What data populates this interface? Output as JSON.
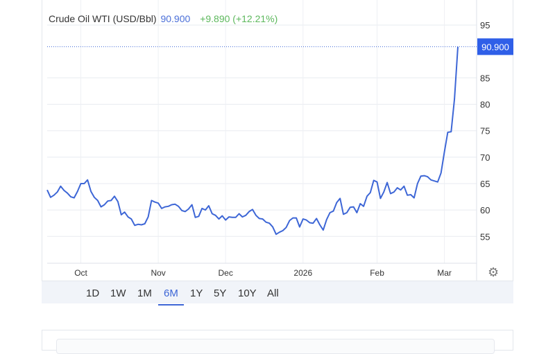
{
  "header": {
    "title": "Crude Oil WTI (USD/Bbl)",
    "price": "90.900",
    "change": "+9.890 (+12.21%)"
  },
  "ranges": [
    {
      "label": "1D"
    },
    {
      "label": "1W"
    },
    {
      "label": "1M"
    },
    {
      "label": "6M",
      "active": true
    },
    {
      "label": "1Y"
    },
    {
      "label": "5Y"
    },
    {
      "label": "10Y"
    },
    {
      "label": "All"
    }
  ],
  "settings_icon": "gear-icon",
  "colors": {
    "line": "#3d66d6",
    "last_price_bg": "#2f5fe8",
    "change": "#5cb85c",
    "price": "#4a6fd8"
  },
  "chart_data": {
    "type": "line",
    "title": "Crude Oil WTI (USD/Bbl)",
    "grid": true,
    "y_axis_side": "right",
    "ylim": [
      50,
      98
    ],
    "y_ticks": [
      55,
      60,
      65,
      70,
      75,
      80,
      85,
      95
    ],
    "last_value_label": "90.900",
    "x_ticks": [
      {
        "label": "Oct",
        "date": "2025-10-01"
      },
      {
        "label": "Nov",
        "date": "2025-11-03"
      },
      {
        "label": "Dec",
        "date": "2025-12-01"
      },
      {
        "label": "2026",
        "date": "2026-01-01"
      },
      {
        "label": "Feb",
        "date": "2026-02-02"
      },
      {
        "label": "Mar",
        "date": "2026-03-02"
      }
    ],
    "x": [
      "2025-09-17",
      "2025-09-18",
      "2025-09-19",
      "2025-09-22",
      "2025-09-23",
      "2025-09-24",
      "2025-09-25",
      "2025-09-26",
      "2025-09-29",
      "2025-09-30",
      "2025-10-01",
      "2025-10-02",
      "2025-10-03",
      "2025-10-06",
      "2025-10-07",
      "2025-10-08",
      "2025-10-09",
      "2025-10-10",
      "2025-10-13",
      "2025-10-14",
      "2025-10-15",
      "2025-10-16",
      "2025-10-17",
      "2025-10-20",
      "2025-10-21",
      "2025-10-22",
      "2025-10-23",
      "2025-10-24",
      "2025-10-27",
      "2025-10-28",
      "2025-10-29",
      "2025-10-30",
      "2025-10-31",
      "2025-11-03",
      "2025-11-04",
      "2025-11-05",
      "2025-11-06",
      "2025-11-07",
      "2025-11-10",
      "2025-11-11",
      "2025-11-12",
      "2025-11-13",
      "2025-11-14",
      "2025-11-17",
      "2025-11-18",
      "2025-11-19",
      "2025-11-20",
      "2025-11-21",
      "2025-11-24",
      "2025-11-25",
      "2025-11-26",
      "2025-11-27",
      "2025-11-28",
      "2025-12-01",
      "2025-12-02",
      "2025-12-03",
      "2025-12-04",
      "2025-12-05",
      "2025-12-08",
      "2025-12-09",
      "2025-12-10",
      "2025-12-11",
      "2025-12-12",
      "2025-12-15",
      "2025-12-16",
      "2025-12-17",
      "2025-12-18",
      "2025-12-19",
      "2025-12-22",
      "2025-12-23",
      "2025-12-24",
      "2025-12-25",
      "2025-12-26",
      "2025-12-29",
      "2025-12-30",
      "2025-12-31",
      "2026-01-01",
      "2026-01-02",
      "2026-01-05",
      "2026-01-06",
      "2026-01-07",
      "2026-01-08",
      "2026-01-09",
      "2026-01-12",
      "2026-01-13",
      "2026-01-14",
      "2026-01-15",
      "2026-01-16",
      "2026-01-19",
      "2026-01-20",
      "2026-01-21",
      "2026-01-22",
      "2026-01-23",
      "2026-01-26",
      "2026-01-27",
      "2026-01-28",
      "2026-01-29",
      "2026-01-30",
      "2026-02-02",
      "2026-02-03",
      "2026-02-04",
      "2026-02-05",
      "2026-02-06",
      "2026-02-09",
      "2026-02-10",
      "2026-02-11",
      "2026-02-12",
      "2026-02-13",
      "2026-02-16",
      "2026-02-17",
      "2026-02-18",
      "2026-02-19",
      "2026-02-20",
      "2026-02-23",
      "2026-02-24",
      "2026-02-25",
      "2026-02-26",
      "2026-02-27",
      "2026-03-02",
      "2026-03-03",
      "2026-03-04",
      "2026-03-05",
      "2026-03-06"
    ],
    "values": [
      63.8,
      62.4,
      62.8,
      63.4,
      64.5,
      63.7,
      63.2,
      62.5,
      62.3,
      63.5,
      65.0,
      65.0,
      65.7,
      63.5,
      62.4,
      61.8,
      60.6,
      61.0,
      61.7,
      61.8,
      62.6,
      61.6,
      59.1,
      59.6,
      58.7,
      58.3,
      57.1,
      57.3,
      57.2,
      57.4,
      58.7,
      61.8,
      61.5,
      61.3,
      60.3,
      60.6,
      60.7,
      61.0,
      61.1,
      60.7,
      59.9,
      59.7,
      60.2,
      61.0,
      58.6,
      58.8,
      60.3,
      60.0,
      60.8,
      59.3,
      59.0,
      58.3,
      58.9,
      58.1,
      58.7,
      58.6,
      58.6,
      59.3,
      58.7,
      59.0,
      59.7,
      60.1,
      59.0,
      58.4,
      58.3,
      57.7,
      57.5,
      56.8,
      55.4,
      55.8,
      56.1,
      56.7,
      58.0,
      58.5,
      58.5,
      56.8,
      58.3,
      58.1,
      57.6,
      57.5,
      58.4,
      57.2,
      56.2,
      58.2,
      59.5,
      59.8,
      61.4,
      62.2,
      59.2,
      59.5,
      60.5,
      60.6,
      59.5,
      61.2,
      60.7,
      62.6,
      63.3,
      65.6,
      65.3,
      62.2,
      63.4,
      65.2,
      63.1,
      63.4,
      64.2,
      63.8,
      64.5,
      62.8,
      62.9,
      62.3,
      65.0,
      66.4,
      66.5,
      66.3,
      65.7,
      65.5,
      65.3,
      67.0,
      71.0,
      74.7,
      74.8,
      81.0,
      90.9
    ]
  }
}
